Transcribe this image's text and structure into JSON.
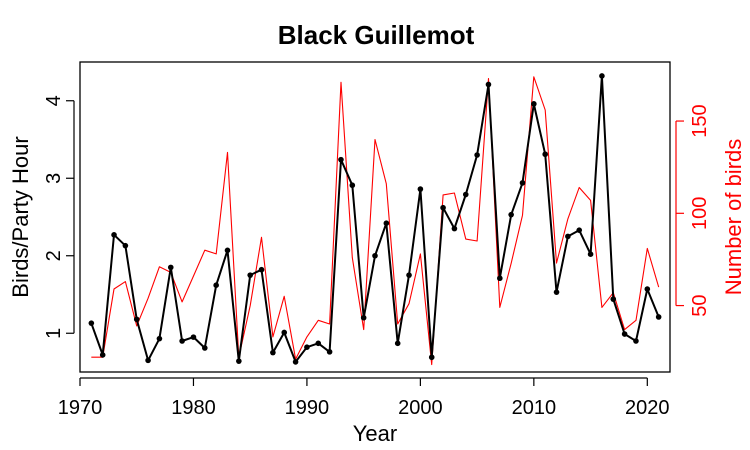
{
  "chart_data": {
    "type": "line",
    "title": "Black Guillemot",
    "xlabel": "Year",
    "ylabel": "Birds/Party Hour",
    "y2label": "Number of birds",
    "xlim": [
      1970,
      2022
    ],
    "ylim": [
      0.5,
      4.5
    ],
    "y2lim": [
      14,
      182
    ],
    "x_ticks": [
      1970,
      1980,
      1990,
      2000,
      2010,
      2020
    ],
    "y_ticks": [
      1,
      2,
      3,
      4
    ],
    "y2_ticks": [
      50,
      100,
      150
    ],
    "grid": false,
    "x": [
      1971,
      1972,
      1973,
      1974,
      1975,
      1976,
      1977,
      1978,
      1979,
      1980,
      1981,
      1982,
      1983,
      1984,
      1985,
      1986,
      1987,
      1988,
      1989,
      1990,
      1991,
      1992,
      1993,
      1994,
      1995,
      1996,
      1997,
      1998,
      1999,
      2000,
      2001,
      2002,
      2003,
      2004,
      2005,
      2006,
      2007,
      2008,
      2009,
      2010,
      2011,
      2012,
      2013,
      2014,
      2015,
      2016,
      2017,
      2018,
      2019,
      2020,
      2021
    ],
    "series": [
      {
        "axis": "left",
        "color": "#000000",
        "markers": true,
        "values": [
          1.13,
          0.72,
          2.27,
          2.13,
          1.18,
          0.65,
          0.93,
          1.85,
          0.9,
          0.95,
          0.81,
          1.62,
          2.07,
          0.64,
          1.75,
          1.82,
          0.75,
          1.01,
          0.63,
          0.82,
          0.87,
          0.76,
          3.24,
          2.91,
          1.2,
          2.0,
          2.42,
          0.87,
          1.75,
          2.86,
          0.69,
          2.62,
          2.35,
          2.79,
          3.3,
          4.21,
          1.71,
          2.53,
          2.94,
          3.96,
          3.31,
          1.53,
          2.25,
          2.33,
          2.02,
          4.32,
          1.44,
          0.99,
          0.9,
          1.57,
          1.21
        ]
      },
      {
        "axis": "right",
        "color": "#ff0000",
        "markers": false,
        "values": [
          22,
          22,
          59,
          63,
          39,
          54,
          71,
          68,
          52,
          66,
          80,
          78,
          133,
          22,
          50,
          87,
          33,
          55,
          21,
          33,
          42,
          40,
          171,
          76,
          37,
          140,
          116,
          40,
          51,
          78,
          18,
          110,
          111,
          86,
          85,
          173,
          49,
          73,
          99,
          174,
          156,
          73,
          97,
          114,
          107,
          49,
          57,
          37,
          42,
          81,
          60
        ]
      }
    ]
  }
}
